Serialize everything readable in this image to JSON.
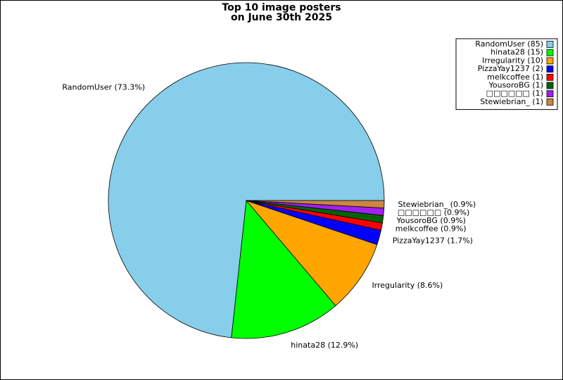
{
  "chart_data": {
    "type": "pie",
    "title": [
      "Top 10 image posters",
      "on June 30th 2025"
    ],
    "categories": [
      "RandomUser",
      "hinata28",
      "Irregularity",
      "PizzaYay1237",
      "melkcoffee",
      "YousoroBG",
      "□□□□□□",
      "Stewiebrian_"
    ],
    "values": [
      85,
      15,
      10,
      2,
      1,
      1,
      1,
      1
    ],
    "legend_labels": [
      "RandomUser (85)",
      "hinata28 (15)",
      "Irregularity (10)",
      "PizzaYay1237 (2)",
      "melkcoffee (1)",
      "YousoroBG (1)",
      "□□□□□□ (1)",
      "Stewiebrian_ (1)"
    ],
    "value_labels": [
      "RandomUser (73.3%)",
      "hinata28 (12.9%)",
      "Irregularity (8.6%)",
      "PizzaYay1237 (1.7%)",
      "melkcoffee (0.9%)",
      "YousoroBG (0.9%)",
      "□□□□□□ (0.9%)",
      "Stewiebrian_ (0.9%)"
    ],
    "colors": [
      "#87ceeb",
      "#00ff00",
      "#ffa500",
      "#0000ff",
      "#ff0000",
      "#006400",
      "#a020f0",
      "#cd853f"
    ],
    "legend": "upper right"
  }
}
